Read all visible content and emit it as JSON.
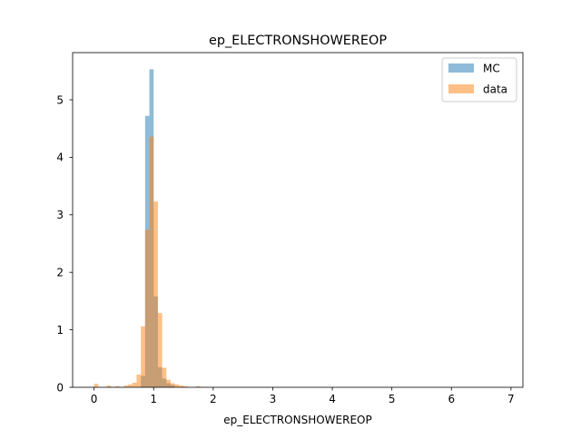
{
  "chart_data": {
    "type": "histogram",
    "title": "ep_ELECTRONSHOWEREOP",
    "xlabel": "ep_ELECTRONSHOWEREOP",
    "ylabel": "",
    "xlim": [
      -0.36,
      7.2
    ],
    "ylim": [
      0,
      5.82
    ],
    "xticks": [
      0,
      1,
      2,
      3,
      4,
      5,
      6,
      7
    ],
    "yticks": [
      0,
      1,
      2,
      3,
      4,
      5
    ],
    "bin_width": 0.0714,
    "legend_position": "top-right",
    "series": [
      {
        "name": "MC",
        "color": "#1f77b4",
        "opacity": 0.5,
        "bins": [
          {
            "x0": 0.786,
            "height": 0.2
          },
          {
            "x0": 0.857,
            "height": 4.72
          },
          {
            "x0": 0.929,
            "height": 5.53
          },
          {
            "x0": 1.0,
            "height": 1.58
          },
          {
            "x0": 1.071,
            "height": 0.35
          },
          {
            "x0": 1.143,
            "height": 0.15
          },
          {
            "x0": 1.214,
            "height": 0.07
          },
          {
            "x0": 1.286,
            "height": 0.04
          }
        ]
      },
      {
        "name": "data",
        "color": "#ff7f0e",
        "opacity": 0.5,
        "bins": [
          {
            "x0": 0.0,
            "height": 0.06
          },
          {
            "x0": 0.214,
            "height": 0.03
          },
          {
            "x0": 0.357,
            "height": 0.02
          },
          {
            "x0": 0.5,
            "height": 0.03
          },
          {
            "x0": 0.571,
            "height": 0.05
          },
          {
            "x0": 0.643,
            "height": 0.08
          },
          {
            "x0": 0.714,
            "height": 0.22
          },
          {
            "x0": 0.786,
            "height": 1.06
          },
          {
            "x0": 0.857,
            "height": 2.74
          },
          {
            "x0": 0.929,
            "height": 4.36
          },
          {
            "x0": 1.0,
            "height": 3.23
          },
          {
            "x0": 1.071,
            "height": 1.29
          },
          {
            "x0": 1.143,
            "height": 0.34
          },
          {
            "x0": 1.214,
            "height": 0.13
          },
          {
            "x0": 1.286,
            "height": 0.07
          },
          {
            "x0": 1.357,
            "height": 0.05
          },
          {
            "x0": 1.429,
            "height": 0.03
          },
          {
            "x0": 1.5,
            "height": 0.02
          },
          {
            "x0": 1.714,
            "height": 0.02
          }
        ]
      }
    ]
  }
}
